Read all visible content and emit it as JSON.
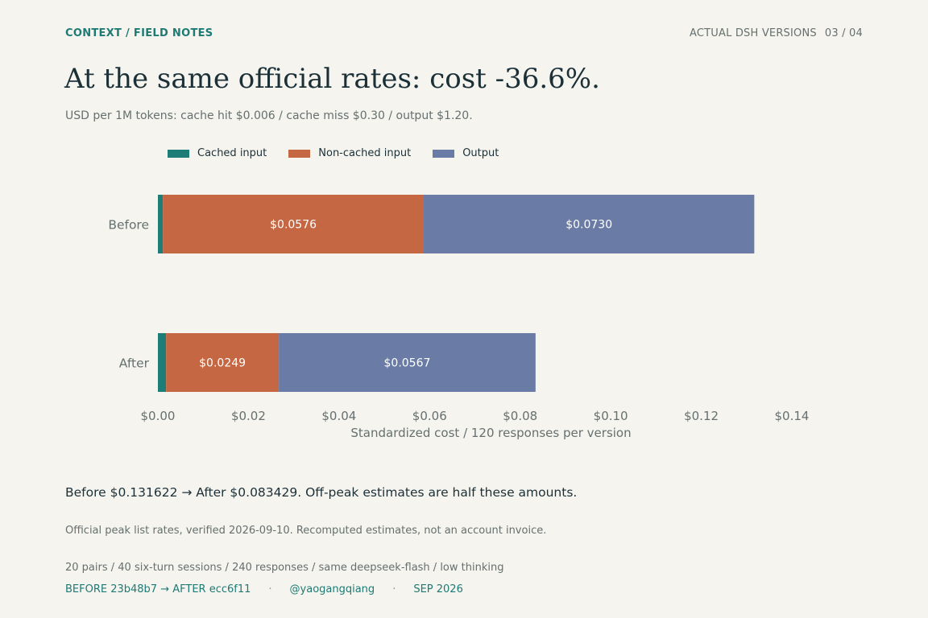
{
  "header": {
    "kicker": "CONTEXT / FIELD NOTES",
    "section": "ACTUAL DSH VERSIONS",
    "page": "03 / 04"
  },
  "title": "At the same official rates: cost -36.6%.",
  "subtitle": "USD per 1M tokens: cache hit $0.006 / cache miss $0.30 / output $1.20.",
  "colors": {
    "cached": "#1f7d78",
    "noncached": "#c56742",
    "output": "#6a7ca5",
    "accent": "#1e7a74"
  },
  "chart_data": {
    "type": "bar",
    "orientation": "horizontal",
    "stacked": true,
    "categories": [
      "Before",
      "After"
    ],
    "series": [
      {
        "name": "Cached input",
        "values": [
          0.0011,
          0.0018
        ],
        "labels": [
          "",
          ""
        ]
      },
      {
        "name": "Non-cached input",
        "values": [
          0.0576,
          0.0249
        ],
        "labels": [
          "$0.0576",
          "$0.0249"
        ]
      },
      {
        "name": "Output",
        "values": [
          0.073,
          0.0567
        ],
        "labels": [
          "$0.0730",
          "$0.0567"
        ]
      }
    ],
    "xlabel": "Standardized cost / 120 responses per version",
    "xlim": [
      0,
      0.14
    ],
    "xticks": [
      0,
      0.02,
      0.04,
      0.06,
      0.08,
      0.1,
      0.12,
      0.14
    ],
    "xtick_labels": [
      "$0.00",
      "$0.02",
      "$0.04",
      "$0.06",
      "$0.08",
      "$0.10",
      "$0.12",
      "$0.14"
    ],
    "legend_position": "top-left",
    "grid": false
  },
  "summary": "Before $0.131622 → After $0.083429. Off-peak estimates are half these amounts.",
  "note": "Official peak list rates, verified 2026-09-10. Recomputed estimates, not an account invoice.",
  "method": "20 pairs / 40 six-turn sessions / 240 responses / same deepseek-flash / low thinking",
  "footer": {
    "versions": "BEFORE 23b48b7  →  AFTER ecc6f11",
    "separator": "·",
    "handle": "@yaogangqiang",
    "date": "SEP 2026"
  }
}
